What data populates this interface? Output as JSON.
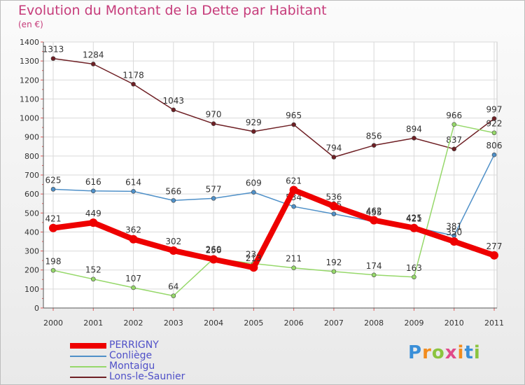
{
  "header": {
    "title": "Evolution du Montant de la Dette par Habitant",
    "unit": "(en €)"
  },
  "logo": {
    "letters": [
      "P",
      "r",
      "o",
      "x",
      "i",
      "t",
      "i"
    ],
    "colors": [
      "#3a8fd8",
      "#f28c1e",
      "#8bc43f",
      "#e04a8a",
      "#f28c1e",
      "#3a8fd8",
      "#8bc43f"
    ]
  },
  "chart_data": {
    "type": "line",
    "categories": [
      "2000",
      "2001",
      "2002",
      "2003",
      "2004",
      "2005",
      "2006",
      "2007",
      "2008",
      "2009",
      "2010",
      "2011"
    ],
    "ylim": [
      0,
      1400
    ],
    "yticks": [
      0,
      100,
      200,
      300,
      400,
      500,
      600,
      700,
      800,
      900,
      1000,
      1100,
      1200,
      1300,
      1400
    ],
    "grid": true,
    "legend_position": "bottom-left",
    "series": [
      {
        "name": "Lons-le-Saunier",
        "color": "#6e1f24",
        "values": [
          1313,
          1284,
          1178,
          1043,
          970,
          929,
          965,
          794,
          856,
          894,
          837,
          997
        ]
      },
      {
        "name": "Conliège",
        "color": "#4f90c8",
        "values": [
          625,
          616,
          614,
          566,
          577,
          609,
          534,
          495,
          455,
          425,
          381,
          806
        ]
      },
      {
        "name": "Montaigu",
        "color": "#96d86a",
        "values": [
          198,
          152,
          107,
          64,
          260,
          234,
          211,
          192,
          174,
          163,
          966,
          922
        ]
      },
      {
        "name": "PERRIGNY",
        "color": "#ee0000",
        "values": [
          421,
          449,
          362,
          302,
          256,
          213,
          621,
          536,
          462,
          421,
          350,
          277
        ]
      }
    ]
  },
  "legend": [
    {
      "label": "PERRIGNY",
      "color": "#ee0000"
    },
    {
      "label": "Conliège",
      "color": "#4f90c8"
    },
    {
      "label": "Montaigu",
      "color": "#96d86a"
    },
    {
      "label": "Lons-le-Saunier",
      "color": "#6e1f24"
    }
  ]
}
